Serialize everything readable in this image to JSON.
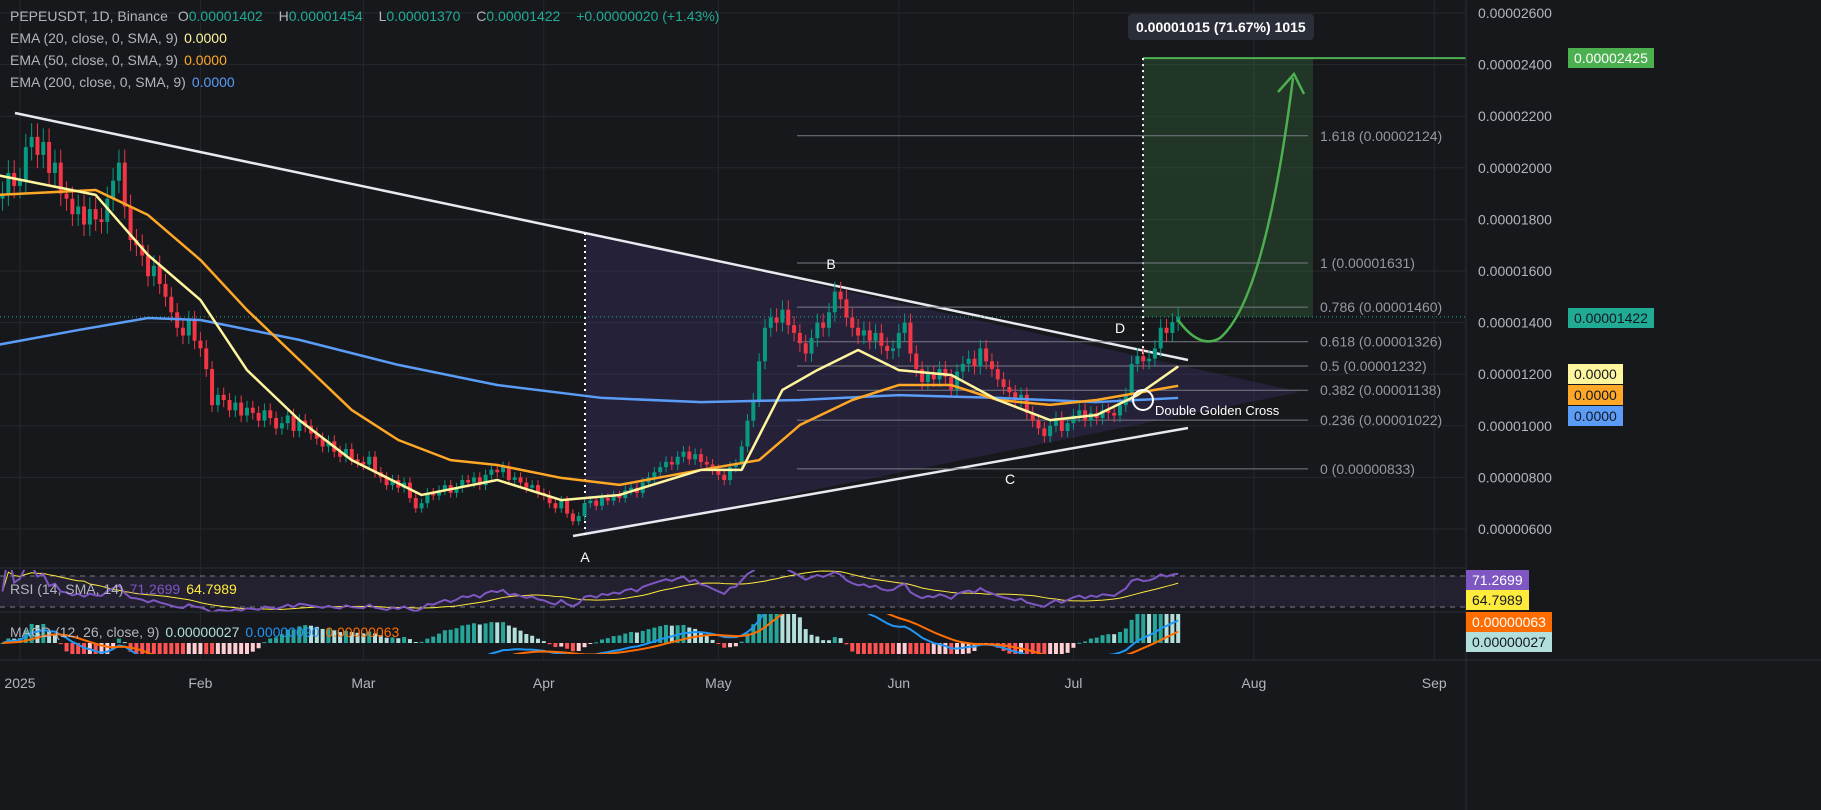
{
  "header": {
    "symbol": "PEPEUSDT, 1D, Binance",
    "o_label": "O",
    "o": "0.00001402",
    "h_label": "H",
    "h": "0.00001454",
    "l_label": "L",
    "l": "0.00001370",
    "c_label": "C",
    "c": "0.00001422",
    "change": "+0.00000020 (+1.43%)"
  },
  "indicators": [
    {
      "label": "EMA (20, close, 0, SMA, 9)",
      "value": "0.0000",
      "color": "#fff59d"
    },
    {
      "label": "EMA (50, close, 0, SMA, 9)",
      "value": "0.0000",
      "color": "#ffa726"
    },
    {
      "label": "EMA (200, close, 0, SMA, 9)",
      "value": "0.0000",
      "color": "#5b9cf6"
    }
  ],
  "rsi": {
    "label": "RSI (14, SMA, 14)",
    "value": "71.2699",
    "sma": "64.7989",
    "color": "#7e57c2",
    "sma_color": "#ffeb3b"
  },
  "macd": {
    "label": "MACD (12, 26, close, 9)",
    "hist": "0.00000027",
    "macd": "0.00000090",
    "signal": "0.00000063",
    "hist_color": "#b2dfdb",
    "macd_color": "#2196f3",
    "signal_color": "#ff6d00"
  },
  "price_tags": {
    "target": "0.00002425",
    "current": "0.00001422",
    "target_color": "#4caf50",
    "current_color": "#22ab94"
  },
  "position_label": "0.00001015 (71.67%) 1015",
  "annotations": {
    "a": "A",
    "b": "B",
    "c": "C",
    "d": "D",
    "cross": "Double Golden Cross"
  },
  "colors": {
    "up": "#089981",
    "down": "#f23645",
    "background": "#17181c"
  },
  "chart_data": {
    "type": "candlestick",
    "title": "PEPEUSDT, 1D, Binance",
    "y_ticks": [
      "0.00002600",
      "0.00002400",
      "0.00002200",
      "0.00002000",
      "0.00001800",
      "0.00001600",
      "0.00001400",
      "0.00001200",
      "0.00001000",
      "0.00000800",
      "0.00000600"
    ],
    "x_ticks": [
      [
        "2025-01-01",
        "2025"
      ],
      [
        "2025-02-01",
        "Feb"
      ],
      [
        "2025-03-01",
        "Mar"
      ],
      [
        "2025-04-01",
        "Apr"
      ],
      [
        "2025-05-01",
        "May"
      ],
      [
        "2025-06-01",
        "Jun"
      ],
      [
        "2025-07-01",
        "Jul"
      ],
      [
        "2025-08-01",
        "Aug"
      ],
      [
        "2025-09-01",
        "Sep"
      ]
    ],
    "grid": true,
    "fib_levels": [
      {
        "ratio": "1.618",
        "price": 2.124e-05,
        "label": "1.618 (0.00002124)"
      },
      {
        "ratio": "1",
        "price": 1.631e-05,
        "label": "1 (0.00001631)"
      },
      {
        "ratio": "0.786",
        "price": 1.46e-05,
        "label": "0.786 (0.00001460)"
      },
      {
        "ratio": "0.618",
        "price": 1.326e-05,
        "label": "0.618 (0.00001326)"
      },
      {
        "ratio": "0.5",
        "price": 1.232e-05,
        "label": "0.5 (0.00001232)"
      },
      {
        "ratio": "0.382",
        "price": 1.138e-05,
        "label": "0.382 (0.00001138)"
      },
      {
        "ratio": "0.236",
        "price": 1.022e-05,
        "label": "0.236 (0.00001022)"
      },
      {
        "ratio": "0",
        "price": 8.33e-06,
        "label": "0 (0.00000833)"
      }
    ],
    "target_price": 2.425e-05,
    "candles_close": [
      [
        "2024-12-29",
        1.9e-05
      ],
      [
        "2024-12-30",
        1.98e-05
      ],
      [
        "2024-12-31",
        1.93e-05
      ],
      [
        "2025-01-01",
        1.95e-05
      ],
      [
        "2025-01-02",
        2.08e-05
      ],
      [
        "2025-01-03",
        2.12e-05
      ],
      [
        "2025-01-04",
        2.05e-05
      ],
      [
        "2025-01-05",
        2.1e-05
      ],
      [
        "2025-01-06",
        1.98e-05
      ],
      [
        "2025-01-07",
        2.02e-05
      ],
      [
        "2025-01-08",
        1.9e-05
      ],
      [
        "2025-01-09",
        1.88e-05
      ],
      [
        "2025-01-10",
        1.82e-05
      ],
      [
        "2025-01-11",
        1.85e-05
      ],
      [
        "2025-01-12",
        1.78e-05
      ],
      [
        "2025-01-13",
        1.84e-05
      ],
      [
        "2025-01-14",
        1.8e-05
      ],
      [
        "2025-01-15",
        1.79e-05
      ],
      [
        "2025-01-16",
        1.88e-05
      ],
      [
        "2025-01-17",
        1.95e-05
      ],
      [
        "2025-01-18",
        2.02e-05
      ],
      [
        "2025-01-19",
        1.85e-05
      ],
      [
        "2025-01-20",
        1.72e-05
      ],
      [
        "2025-01-21",
        1.7e-05
      ],
      [
        "2025-01-22",
        1.66e-05
      ],
      [
        "2025-01-23",
        1.58e-05
      ],
      [
        "2025-01-24",
        1.62e-05
      ],
      [
        "2025-01-25",
        1.55e-05
      ],
      [
        "2025-01-26",
        1.5e-05
      ],
      [
        "2025-01-27",
        1.44e-05
      ],
      [
        "2025-01-28",
        1.38e-05
      ],
      [
        "2025-01-29",
        1.35e-05
      ],
      [
        "2025-01-30",
        1.41e-05
      ],
      [
        "2025-01-31",
        1.33e-05
      ],
      [
        "2025-02-01",
        1.3e-05
      ],
      [
        "2025-02-02",
        1.22e-05
      ],
      [
        "2025-02-03",
        1.08e-05
      ],
      [
        "2025-02-04",
        1.12e-05
      ],
      [
        "2025-02-05",
        1.1e-05
      ],
      [
        "2025-02-06",
        1.06e-05
      ],
      [
        "2025-02-07",
        1.09e-05
      ],
      [
        "2025-02-08",
        1.04e-05
      ],
      [
        "2025-02-09",
        1.07e-05
      ],
      [
        "2025-02-10",
        1.05e-05
      ],
      [
        "2025-02-11",
        1.02e-05
      ],
      [
        "2025-02-12",
        1.06e-05
      ],
      [
        "2025-02-13",
        1.03e-05
      ],
      [
        "2025-02-14",
        9.9e-06
      ],
      [
        "2025-02-15",
        1.01e-05
      ],
      [
        "2025-02-16",
        1.04e-05
      ],
      [
        "2025-02-17",
        9.8e-06
      ],
      [
        "2025-02-18",
        1.02e-05
      ],
      [
        "2025-02-19",
        1e-05
      ],
      [
        "2025-02-20",
        9.7e-06
      ],
      [
        "2025-02-21",
        9.5e-06
      ],
      [
        "2025-02-22",
        9.2e-06
      ],
      [
        "2025-02-23",
        9.4e-06
      ],
      [
        "2025-02-24",
        9e-06
      ],
      [
        "2025-02-25",
        8.8e-06
      ],
      [
        "2025-02-26",
        9.1e-06
      ],
      [
        "2025-02-27",
        8.7e-06
      ],
      [
        "2025-02-28",
        8.6e-06
      ],
      [
        "2025-03-01",
        8.5e-06
      ],
      [
        "2025-03-02",
        8.8e-06
      ],
      [
        "2025-03-03",
        8.2e-06
      ],
      [
        "2025-03-04",
        8e-06
      ],
      [
        "2025-03-05",
        7.7e-06
      ],
      [
        "2025-03-06",
        7.9e-06
      ],
      [
        "2025-03-07",
        7.6e-06
      ],
      [
        "2025-03-08",
        7.8e-06
      ],
      [
        "2025-03-09",
        7.2e-06
      ],
      [
        "2025-03-10",
        6.8e-06
      ],
      [
        "2025-03-11",
        7e-06
      ],
      [
        "2025-03-12",
        7.4e-06
      ],
      [
        "2025-03-13",
        7.3e-06
      ],
      [
        "2025-03-14",
        7.5e-06
      ],
      [
        "2025-03-15",
        7.7e-06
      ],
      [
        "2025-03-16",
        7.4e-06
      ],
      [
        "2025-03-17",
        7.6e-06
      ],
      [
        "2025-03-18",
        7.9e-06
      ],
      [
        "2025-03-19",
        7.8e-06
      ],
      [
        "2025-03-20",
        8e-06
      ],
      [
        "2025-03-21",
        7.7e-06
      ],
      [
        "2025-03-22",
        8.1e-06
      ],
      [
        "2025-03-23",
        8.3e-06
      ],
      [
        "2025-03-24",
        8.2e-06
      ],
      [
        "2025-03-25",
        8.4e-06
      ],
      [
        "2025-03-26",
        7.9e-06
      ],
      [
        "2025-03-27",
        8e-06
      ],
      [
        "2025-03-28",
        7.8e-06
      ],
      [
        "2025-03-29",
        7.6e-06
      ],
      [
        "2025-03-30",
        7.7e-06
      ],
      [
        "2025-03-31",
        7.4e-06
      ],
      [
        "2025-04-01",
        7.3e-06
      ],
      [
        "2025-04-02",
        7e-06
      ],
      [
        "2025-04-03",
        6.8e-06
      ],
      [
        "2025-04-04",
        7.1e-06
      ],
      [
        "2025-04-05",
        6.6e-06
      ],
      [
        "2025-04-06",
        6.3e-06
      ],
      [
        "2025-04-07",
        6.5e-06
      ],
      [
        "2025-04-08",
        7e-06
      ],
      [
        "2025-04-09",
        7.1e-06
      ],
      [
        "2025-04-10",
        6.9e-06
      ],
      [
        "2025-04-11",
        7.2e-06
      ],
      [
        "2025-04-12",
        7.1e-06
      ],
      [
        "2025-04-13",
        7.3e-06
      ],
      [
        "2025-04-14",
        7.2e-06
      ],
      [
        "2025-04-15",
        7.5e-06
      ],
      [
        "2025-04-16",
        7.6e-06
      ],
      [
        "2025-04-17",
        7.4e-06
      ],
      [
        "2025-04-18",
        7.8e-06
      ],
      [
        "2025-04-19",
        8e-06
      ],
      [
        "2025-04-20",
        8.2e-06
      ],
      [
        "2025-04-21",
        8.4e-06
      ],
      [
        "2025-04-22",
        8.6e-06
      ],
      [
        "2025-04-23",
        8.5e-06
      ],
      [
        "2025-04-24",
        8.8e-06
      ],
      [
        "2025-04-25",
        9e-06
      ],
      [
        "2025-04-26",
        8.7e-06
      ],
      [
        "2025-04-27",
        8.9e-06
      ],
      [
        "2025-04-28",
        8.6e-06
      ],
      [
        "2025-04-29",
        8.5e-06
      ],
      [
        "2025-04-30",
        8.3e-06
      ],
      [
        "2025-05-01",
        8.1e-06
      ],
      [
        "2025-05-02",
        7.9e-06
      ],
      [
        "2025-05-03",
        8.4e-06
      ],
      [
        "2025-05-04",
        8.5e-06
      ],
      [
        "2025-05-05",
        9.2e-06
      ],
      [
        "2025-05-06",
        1.02e-05
      ],
      [
        "2025-05-07",
        1.1e-05
      ],
      [
        "2025-05-08",
        1.25e-05
      ],
      [
        "2025-05-09",
        1.38e-05
      ],
      [
        "2025-05-10",
        1.42e-05
      ],
      [
        "2025-05-11",
        1.4e-05
      ],
      [
        "2025-05-12",
        1.45e-05
      ],
      [
        "2025-05-13",
        1.39e-05
      ],
      [
        "2025-05-14",
        1.36e-05
      ],
      [
        "2025-05-15",
        1.32e-05
      ],
      [
        "2025-05-16",
        1.28e-05
      ],
      [
        "2025-05-17",
        1.34e-05
      ],
      [
        "2025-05-18",
        1.4e-05
      ],
      [
        "2025-05-19",
        1.38e-05
      ],
      [
        "2025-05-20",
        1.44e-05
      ],
      [
        "2025-05-21",
        1.52e-05
      ],
      [
        "2025-05-22",
        1.49e-05
      ],
      [
        "2025-05-23",
        1.42e-05
      ],
      [
        "2025-05-24",
        1.38e-05
      ],
      [
        "2025-05-25",
        1.35e-05
      ],
      [
        "2025-05-26",
        1.37e-05
      ],
      [
        "2025-05-27",
        1.33e-05
      ],
      [
        "2025-05-28",
        1.36e-05
      ],
      [
        "2025-05-29",
        1.31e-05
      ],
      [
        "2025-05-30",
        1.29e-05
      ],
      [
        "2025-05-31",
        1.3e-05
      ],
      [
        "2025-06-01",
        1.36e-05
      ],
      [
        "2025-06-02",
        1.4e-05
      ],
      [
        "2025-06-03",
        1.28e-05
      ],
      [
        "2025-06-04",
        1.22e-05
      ],
      [
        "2025-06-05",
        1.17e-05
      ],
      [
        "2025-06-06",
        1.2e-05
      ],
      [
        "2025-06-07",
        1.18e-05
      ],
      [
        "2025-06-08",
        1.22e-05
      ],
      [
        "2025-06-09",
        1.19e-05
      ],
      [
        "2025-06-10",
        1.14e-05
      ],
      [
        "2025-06-11",
        1.21e-05
      ],
      [
        "2025-06-12",
        1.24e-05
      ],
      [
        "2025-06-13",
        1.26e-05
      ],
      [
        "2025-06-14",
        1.23e-05
      ],
      [
        "2025-06-15",
        1.3e-05
      ],
      [
        "2025-06-16",
        1.25e-05
      ],
      [
        "2025-06-17",
        1.22e-05
      ],
      [
        "2025-06-18",
        1.18e-05
      ],
      [
        "2025-06-19",
        1.15e-05
      ],
      [
        "2025-06-20",
        1.13e-05
      ],
      [
        "2025-06-21",
        1.1e-05
      ],
      [
        "2025-06-22",
        1.12e-05
      ],
      [
        "2025-06-23",
        1.05e-05
      ],
      [
        "2025-06-24",
        1.02e-05
      ],
      [
        "2025-06-25",
        9.9e-06
      ],
      [
        "2025-06-26",
        9.6e-06
      ],
      [
        "2025-06-27",
        1e-05
      ],
      [
        "2025-06-28",
        1.03e-05
      ],
      [
        "2025-06-29",
        9.8e-06
      ],
      [
        "2025-06-30",
        1.01e-05
      ],
      [
        "2025-07-01",
        1.04e-05
      ],
      [
        "2025-07-02",
        1.06e-05
      ],
      [
        "2025-07-03",
        1.02e-05
      ],
      [
        "2025-07-04",
        1.05e-05
      ],
      [
        "2025-07-05",
        1.03e-05
      ],
      [
        "2025-07-06",
        1.06e-05
      ],
      [
        "2025-07-07",
        1.05e-05
      ],
      [
        "2025-07-08",
        1.04e-05
      ],
      [
        "2025-07-09",
        1.08e-05
      ],
      [
        "2025-07-10",
        1.12e-05
      ],
      [
        "2025-07-11",
        1.24e-05
      ],
      [
        "2025-07-12",
        1.27e-05
      ],
      [
        "2025-07-13",
        1.25e-05
      ],
      [
        "2025-07-14",
        1.26e-05
      ],
      [
        "2025-07-15",
        1.3e-05
      ],
      [
        "2025-07-16",
        1.38e-05
      ],
      [
        "2025-07-17",
        1.36e-05
      ],
      [
        "2025-07-18",
        1.402e-05
      ],
      [
        "2025-07-19",
        1.422e-05
      ]
    ],
    "ema20": [
      [
        "2024-12-28",
        1.972e-05
      ],
      [
        "2025-01-14",
        1.895e-05
      ],
      [
        "2025-01-23",
        1.662e-05
      ],
      [
        "2025-02-01",
        1.488e-05
      ],
      [
        "2025-02-09",
        1.216e-05
      ],
      [
        "2025-02-18",
        1.022e-05
      ],
      [
        "2025-02-27",
        8.67e-06
      ],
      [
        "2025-03-11",
        7.32e-06
      ],
      [
        "2025-03-24",
        7.9e-06
      ],
      [
        "2025-04-04",
        7.12e-06
      ],
      [
        "2025-04-14",
        7.32e-06
      ],
      [
        "2025-04-28",
        8.29e-06
      ],
      [
        "2025-05-05",
        8.29e-06
      ],
      [
        "2025-05-12",
        1.139e-05
      ],
      [
        "2025-05-18",
        1.216e-05
      ],
      [
        "2025-05-25",
        1.294e-05
      ],
      [
        "2025-06-01",
        1.216e-05
      ],
      [
        "2025-06-10",
        1.197e-05
      ],
      [
        "2025-06-18",
        1.1e-05
      ],
      [
        "2025-06-27",
        1.022e-05
      ],
      [
        "2025-07-05",
        1.042e-05
      ],
      [
        "2025-07-12",
        1.119e-05
      ],
      [
        "2025-07-19",
        1.23e-05
      ]
    ],
    "ema50": [
      [
        "2024-12-28",
        1.895e-05
      ],
      [
        "2025-01-14",
        1.914e-05
      ],
      [
        "2025-01-23",
        1.817e-05
      ],
      [
        "2025-02-01",
        1.643e-05
      ],
      [
        "2025-02-09",
        1.449e-05
      ],
      [
        "2025-02-18",
        1.255e-05
      ],
      [
        "2025-02-27",
        1.061e-05
      ],
      [
        "2025-03-07",
        9.45e-06
      ],
      [
        "2025-03-16",
        8.67e-06
      ],
      [
        "2025-03-24",
        8.48e-06
      ],
      [
        "2025-04-04",
        7.98e-06
      ],
      [
        "2025-04-14",
        7.71e-06
      ],
      [
        "2025-04-28",
        8.29e-06
      ],
      [
        "2025-05-08",
        8.67e-06
      ],
      [
        "2025-05-15",
        1.003e-05
      ],
      [
        "2025-05-24",
        1.1e-05
      ],
      [
        "2025-06-01",
        1.158e-05
      ],
      [
        "2025-06-10",
        1.158e-05
      ],
      [
        "2025-06-18",
        1.1e-05
      ],
      [
        "2025-06-27",
        1.081e-05
      ],
      [
        "2025-07-05",
        1.1e-05
      ],
      [
        "2025-07-19",
        1.155e-05
      ]
    ],
    "ema200": [
      [
        "2024-12-28",
        1.313e-05
      ],
      [
        "2025-01-11",
        1.371e-05
      ],
      [
        "2025-01-23",
        1.418e-05
      ],
      [
        "2025-02-01",
        1.41e-05
      ],
      [
        "2025-02-18",
        1.333e-05
      ],
      [
        "2025-03-07",
        1.236e-05
      ],
      [
        "2025-03-24",
        1.158e-05
      ],
      [
        "2025-04-11",
        1.108e-05
      ],
      [
        "2025-04-28",
        1.092e-05
      ],
      [
        "2025-05-15",
        1.1e-05
      ],
      [
        "2025-06-01",
        1.119e-05
      ],
      [
        "2025-06-18",
        1.108e-05
      ],
      [
        "2025-07-05",
        1.092e-05
      ],
      [
        "2025-07-19",
        1.108e-05
      ]
    ]
  }
}
